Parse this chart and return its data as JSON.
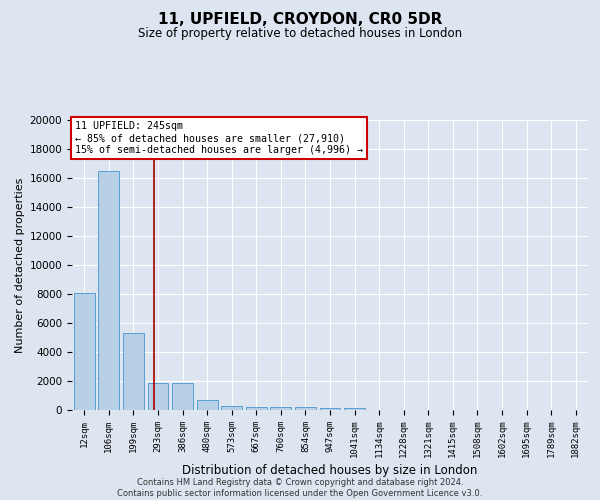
{
  "title1": "11, UPFIELD, CROYDON, CR0 5DR",
  "title2": "Size of property relative to detached houses in London",
  "xlabel": "Distribution of detached houses by size in London",
  "ylabel": "Number of detached properties",
  "annotation_line1": "11 UPFIELD: 245sqm",
  "annotation_line2": "← 85% of detached houses are smaller (27,910)",
  "annotation_line3": "15% of semi-detached houses are larger (4,996) →",
  "categories": [
    "12sqm",
    "106sqm",
    "199sqm",
    "293sqm",
    "386sqm",
    "480sqm",
    "573sqm",
    "667sqm",
    "760sqm",
    "854sqm",
    "947sqm",
    "1041sqm",
    "1134sqm",
    "1228sqm",
    "1321sqm",
    "1415sqm",
    "1508sqm",
    "1602sqm",
    "1695sqm",
    "1789sqm",
    "1882sqm"
  ],
  "values": [
    8100,
    16500,
    5300,
    1850,
    1850,
    700,
    300,
    220,
    200,
    175,
    160,
    130,
    0,
    0,
    0,
    0,
    0,
    0,
    0,
    0,
    0
  ],
  "bar_color": "#b8cfe8",
  "bar_edge_color": "#5a9fd4",
  "vline_x": 2.85,
  "vline_color": "#aa0000",
  "bg_color": "#dde5f0",
  "grid_color": "#ffffff",
  "annotation_box_color": "#ffffff",
  "annotation_box_edge": "#cc0000",
  "footer1": "Contains HM Land Registry data © Crown copyright and database right 2024.",
  "footer2": "Contains public sector information licensed under the Open Government Licence v3.0.",
  "ylim": [
    0,
    20000
  ],
  "yticks": [
    0,
    2000,
    4000,
    6000,
    8000,
    10000,
    12000,
    14000,
    16000,
    18000,
    20000
  ]
}
